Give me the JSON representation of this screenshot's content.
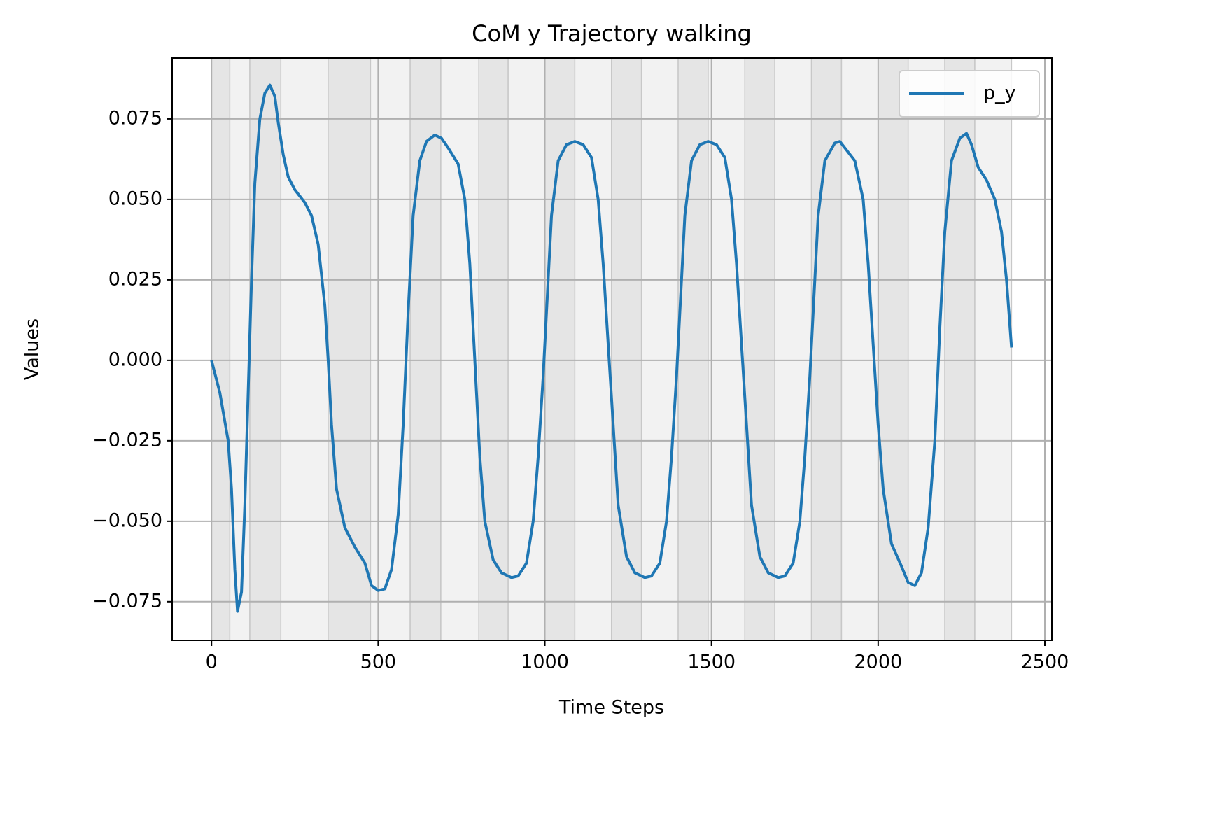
{
  "chart_data": {
    "type": "line",
    "title": "CoM y Trajectory walking",
    "xlabel": "Time Steps",
    "ylabel": "Values",
    "x": [
      0,
      25,
      50,
      60,
      70,
      78,
      90,
      100,
      110,
      120,
      130,
      145,
      160,
      175,
      190,
      200,
      215,
      230,
      250,
      280,
      300,
      320,
      340,
      350,
      360,
      375,
      400,
      430,
      460,
      480,
      500,
      520,
      540,
      560,
      575,
      590,
      605,
      625,
      645,
      670,
      690,
      710,
      740,
      760,
      775,
      790,
      805,
      820,
      845,
      870,
      900,
      920,
      945,
      965,
      980,
      995,
      1005,
      1020,
      1040,
      1065,
      1090,
      1115,
      1140,
      1160,
      1175,
      1190,
      1205,
      1220,
      1245,
      1270,
      1300,
      1320,
      1345,
      1365,
      1380,
      1395,
      1405,
      1420,
      1440,
      1465,
      1490,
      1515,
      1540,
      1560,
      1575,
      1590,
      1605,
      1620,
      1645,
      1670,
      1700,
      1720,
      1745,
      1765,
      1780,
      1795,
      1805,
      1820,
      1840,
      1870,
      1885,
      1900,
      1930,
      1955,
      1970,
      1985,
      2000,
      2015,
      2040,
      2070,
      2090,
      2110,
      2130,
      2150,
      2170,
      2185,
      2200,
      2220,
      2245,
      2265,
      2280,
      2300,
      2325,
      2350,
      2370,
      2385,
      2400
    ],
    "series": [
      {
        "name": "p_y",
        "color": "#1f77b4",
        "values": [
          0,
          -0.01,
          -0.025,
          -0.04,
          -0.065,
          -0.078,
          -0.072,
          -0.045,
          -0.01,
          0.025,
          0.055,
          0.075,
          0.083,
          0.0855,
          0.082,
          0.074,
          0.064,
          0.057,
          0.053,
          0.049,
          0.045,
          0.036,
          0.017,
          0,
          -0.02,
          -0.04,
          -0.052,
          -0.058,
          -0.063,
          -0.07,
          -0.0715,
          -0.071,
          -0.065,
          -0.048,
          -0.02,
          0.015,
          0.045,
          0.062,
          0.068,
          0.07,
          0.069,
          0.066,
          0.061,
          0.05,
          0.03,
          0,
          -0.03,
          -0.05,
          -0.062,
          -0.066,
          -0.0675,
          -0.067,
          -0.063,
          -0.05,
          -0.03,
          -0.005,
          0.015,
          0.045,
          0.062,
          0.067,
          0.068,
          0.067,
          0.063,
          0.05,
          0.03,
          0.005,
          -0.02,
          -0.045,
          -0.061,
          -0.066,
          -0.0675,
          -0.067,
          -0.063,
          -0.05,
          -0.03,
          -0.005,
          0.015,
          0.045,
          0.062,
          0.067,
          0.068,
          0.067,
          0.063,
          0.05,
          0.03,
          0.005,
          -0.02,
          -0.045,
          -0.061,
          -0.066,
          -0.0675,
          -0.067,
          -0.063,
          -0.05,
          -0.03,
          -0.005,
          0.015,
          0.045,
          0.062,
          0.0675,
          0.068,
          0.066,
          0.062,
          0.05,
          0.03,
          0.005,
          -0.02,
          -0.04,
          -0.057,
          -0.064,
          -0.069,
          -0.07,
          -0.066,
          -0.052,
          -0.025,
          0.01,
          0.04,
          0.062,
          0.069,
          0.0705,
          0.067,
          0.06,
          0.056,
          0.05,
          0.04,
          0.025,
          0.004
        ]
      }
    ],
    "spans": [
      [
        0,
        55
      ],
      [
        55,
        115
      ],
      [
        115,
        208
      ],
      [
        208,
        350
      ],
      [
        350,
        477
      ],
      [
        477,
        596
      ],
      [
        596,
        688
      ],
      [
        688,
        802
      ],
      [
        802,
        890
      ],
      [
        890,
        1000
      ],
      [
        1000,
        1090
      ],
      [
        1090,
        1200
      ],
      [
        1200,
        1290
      ],
      [
        1290,
        1400
      ],
      [
        1400,
        1490
      ],
      [
        1490,
        1600
      ],
      [
        1600,
        1690
      ],
      [
        1690,
        1800
      ],
      [
        1800,
        1890
      ],
      [
        1890,
        2000
      ],
      [
        2000,
        2090
      ],
      [
        2090,
        2200
      ],
      [
        2200,
        2290
      ],
      [
        2290,
        2400
      ]
    ],
    "span_colors": [
      "#e5e5e5",
      "#f2f2f2"
    ],
    "xlim": [
      -118,
      2521
    ],
    "ylim": [
      -0.087,
      0.0939
    ],
    "xticks": [
      0,
      500,
      1000,
      1500,
      2000,
      2500
    ],
    "yticks": [
      {
        "value": -0.075,
        "label": "−0.075"
      },
      {
        "value": -0.05,
        "label": "−0.050"
      },
      {
        "value": -0.025,
        "label": "−0.025"
      },
      {
        "value": 0,
        "label": "0.000"
      },
      {
        "value": 0.025,
        "label": "0.025"
      },
      {
        "value": 0.05,
        "label": "0.050"
      },
      {
        "value": 0.075,
        "label": "0.075"
      }
    ],
    "grid": true,
    "legend": "upper right"
  }
}
